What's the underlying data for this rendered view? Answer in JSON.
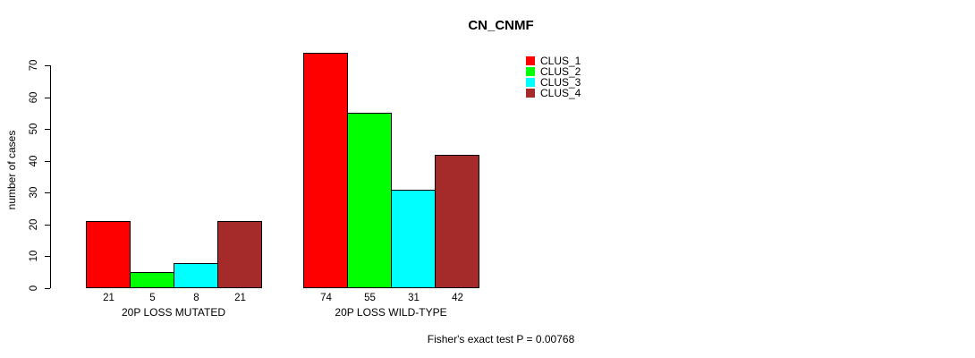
{
  "chart_data": {
    "type": "bar",
    "title": "CN_CNMF",
    "xlabel": "",
    "ylabel": "number of cases",
    "ylim": [
      0,
      70
    ],
    "y_ticks": [
      0,
      10,
      20,
      30,
      40,
      50,
      60,
      70
    ],
    "grid": false,
    "categories": [
      "20P LOSS MUTATED",
      "20P LOSS WILD-TYPE"
    ],
    "series": [
      {
        "name": "CLUS_1",
        "color": "#ff0000",
        "values": [
          21,
          74
        ]
      },
      {
        "name": "CLUS_2",
        "color": "#00ff00",
        "values": [
          5,
          55
        ]
      },
      {
        "name": "CLUS_3",
        "color": "#00ffff",
        "values": [
          8,
          31
        ]
      },
      {
        "name": "CLUS_4",
        "color": "#a52a2a",
        "values": [
          21,
          42
        ]
      }
    ],
    "value_labels": [
      [
        21,
        5,
        8,
        21
      ],
      [
        74,
        55,
        31,
        42
      ]
    ],
    "bar_border_color": "#000000",
    "legend": {
      "position": "top-right",
      "entries": [
        "CLUS_1",
        "CLUS_2",
        "CLUS_3",
        "CLUS_4"
      ]
    },
    "annotation": "Fisher's exact test P = 0.00768"
  }
}
